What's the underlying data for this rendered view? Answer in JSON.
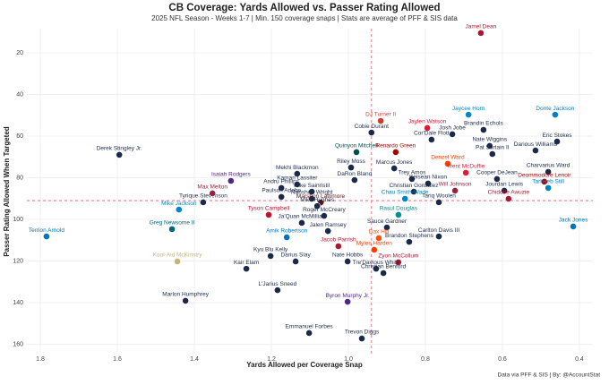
{
  "chart_data": {
    "type": "scatter",
    "title": "CB Coverage: Yards Allowed vs. Passer Rating Allowed",
    "subtitle": "2025 NFL Season - Weeks 1-7 | Min. 150 coverage snaps | Stats are average of PFF & SIS data",
    "x_label": "Yards Allowed per Coverage Snap",
    "y_label": "Passer Rating Allowed When Targeted",
    "caption": "Data via PFF & SIS | By: @AccountStat",
    "xlim": [
      1.835,
      0.365
    ],
    "ylim": [
      164.5,
      8.4
    ],
    "xticks": [
      1.8,
      1.6,
      1.4,
      1.2,
      {
        "value": 1,
        "label": "1.0"
      },
      0.8,
      0.6,
      0.4
    ],
    "yticks": [
      20,
      40,
      60,
      80,
      100,
      120,
      140,
      160
    ],
    "grid": true,
    "reference_x": 0.94,
    "reference_y": 91,
    "reference_color": "#e05a6a",
    "labels": [
      "Jamel Dean",
      "Jaycee Horn",
      "Donte Jackson",
      "DJ Turner II",
      "Cobie Durant",
      "Jaylen Watson",
      "Brandin Echols",
      "Eric Stokes",
      "Josh Jobe",
      "Cor'Dale Flott",
      "Nate Wiggins",
      "Renardo Green",
      "Pat Surtain II",
      "Darious Williams",
      "Derek Stingley Jr.",
      "Quinyon Mitchell",
      "Denzel Ward",
      "Marcus Jones",
      "Riley Moss",
      "Mekhi Blackmon",
      "Trent McDuffie",
      "Charvarius Ward",
      "Trey Amos",
      "DaRon Bland",
      "Isaiah Rodgers",
      "Cooper DeJean",
      "Deommodore Lenoir",
      "Keisean Nixon",
      "Andru Phillips",
      "Kamari Lassiter",
      "Mike Sainristil",
      "Will Johnson",
      "Jourdan Lewis",
      "Tarheeb Still",
      "Christian Gonzalez",
      "Tyrique Stevenson",
      "Max Melton",
      "Paulson Adebo",
      "Nahshon Wright",
      "Marshon Lattimore",
      "Mike Hughes",
      "Chau Smith-Wade",
      "Tariq Woolen",
      "Chidobe Awuzie",
      "Mike Jackson",
      "Tyson Campbell",
      "Roger McCreary",
      "Rasul Douglas",
      "Ja'Quan McMillian",
      "Greg Newsome II",
      "Terrion Arnold",
      "Jack Jones",
      "Jalen Ramsey",
      "Sauce Gardner",
      "Carlton Davis III",
      "Amik Robertson",
      "Brandon Stephens",
      "Jacob Parrish",
      "Dax Hill",
      "Myles Harden",
      "Kool-Aid McKinstry",
      "Kyu Blu Kelly",
      "Darius Slay",
      "Nate Hobbs",
      "Zyon McCollum",
      "Tre'Davious White",
      "Kair Elam",
      "Christian Benford",
      "L'Jarius Sneed",
      "Marlon Humphrey",
      "Byron Murphy Jr.",
      "Emmanuel Forbes",
      "Trevon Diggs"
    ],
    "x": [
      0.656,
      0.688,
      0.463,
      0.916,
      0.94,
      0.795,
      0.649,
      0.458,
      0.73,
      0.784,
      0.633,
      0.877,
      0.626,
      0.514,
      1.595,
      0.979,
      0.742,
      0.881,
      0.993,
      1.133,
      0.695,
      0.481,
      0.835,
      0.984,
      1.305,
      0.614,
      0.491,
      0.793,
      1.174,
      1.133,
      1.095,
      0.723,
      0.595,
      0.481,
      0.83,
      1.377,
      1.353,
      1.174,
      1.095,
      1.072,
      1.081,
      0.853,
      0.765,
      0.584,
      1.44,
      1.207,
      1.063,
      0.87,
      1.121,
      1.458,
      1.784,
      0.416,
      1.053,
      0.9,
      0.765,
      1.16,
      0.842,
      1.026,
      0.921,
      0.933,
      1.444,
      1.202,
      1.137,
      1.002,
      0.87,
      0.928,
      1.265,
      0.909,
      1.184,
      1.423,
      1.002,
      1.102,
      0.965
    ],
    "y": [
      10.5,
      49.7,
      49.7,
      52.7,
      58.3,
      56.1,
      57,
      62.6,
      59.1,
      61.7,
      64.7,
      67.7,
      68.6,
      66.9,
      69,
      67.7,
      73.3,
      75.5,
      75.1,
      78.1,
      77.6,
      77.2,
      80.6,
      81.1,
      81.5,
      80.6,
      81.9,
      82.8,
      84.9,
      83.2,
      86.7,
      86.2,
      86.2,
      84.9,
      86.7,
      91.8,
      87.5,
      89.2,
      90.1,
      91.9,
      93.6,
      90.1,
      91.8,
      90.1,
      95.3,
      97.8,
      98.3,
      97.8,
      101.7,
      104.7,
      108.2,
      103.4,
      105.6,
      103.9,
      108.2,
      108.6,
      110.8,
      112.9,
      109,
      114.6,
      120.2,
      117.6,
      120.2,
      120.2,
      120.6,
      123.7,
      123.7,
      125.8,
      134,
      139.1,
      139.6,
      154.6,
      157.2
    ],
    "colors": [
      "#a71930",
      "#0085ca",
      "#0080c6",
      "#d03a2a",
      "#1b2a4a",
      "#e31837",
      "#1b2a4a",
      "#1b2a4a",
      "#1b2a4a",
      "#1b2a4a",
      "#1b2a4a",
      "#aa0000",
      "#1b2a4a",
      "#1b2a4a",
      "#1b2a4a",
      "#004c54",
      "#ff3c00",
      "#1b2a4a",
      "#1b2a4a",
      "#1b2a4a",
      "#e31837",
      "#1b2a4a",
      "#1b2a4a",
      "#1b2a4a",
      "#4f2683",
      "#1b2a4a",
      "#aa0000",
      "#1b2a4a",
      "#1b2a4a",
      "#1b2a4a",
      "#1b2a4a",
      "#97233f",
      "#1b2a4a",
      "#0080c6",
      "#1b2a4a",
      "#1b2a4a",
      "#97233f",
      "#1b2a4a",
      "#1b2a4a",
      "#5a1414",
      "#1b2a4a",
      "#0085ca",
      "#1b2a4a",
      "#a71930",
      "#0085ca",
      "#c8102e",
      "#1b2a4a",
      "#008e97",
      "#1b2a4a",
      "#006778",
      "#0076b6",
      "#0076b6",
      "#1b2a4a",
      "#1b2a4a",
      "#1b2a4a",
      "#0076b6",
      "#1b2a4a",
      "#a71930",
      "#fb4f14",
      "#ff3c00",
      "#c9b27a",
      "#1b2a4a",
      "#1b2a4a",
      "#1b2a4a",
      "#a71930",
      "#1b2a4a",
      "#1b2a4a",
      "#1b2a4a",
      "#1b2a4a",
      "#1b2a4a",
      "#4f2683",
      "#1b2a4a",
      "#1b2a4a"
    ]
  }
}
